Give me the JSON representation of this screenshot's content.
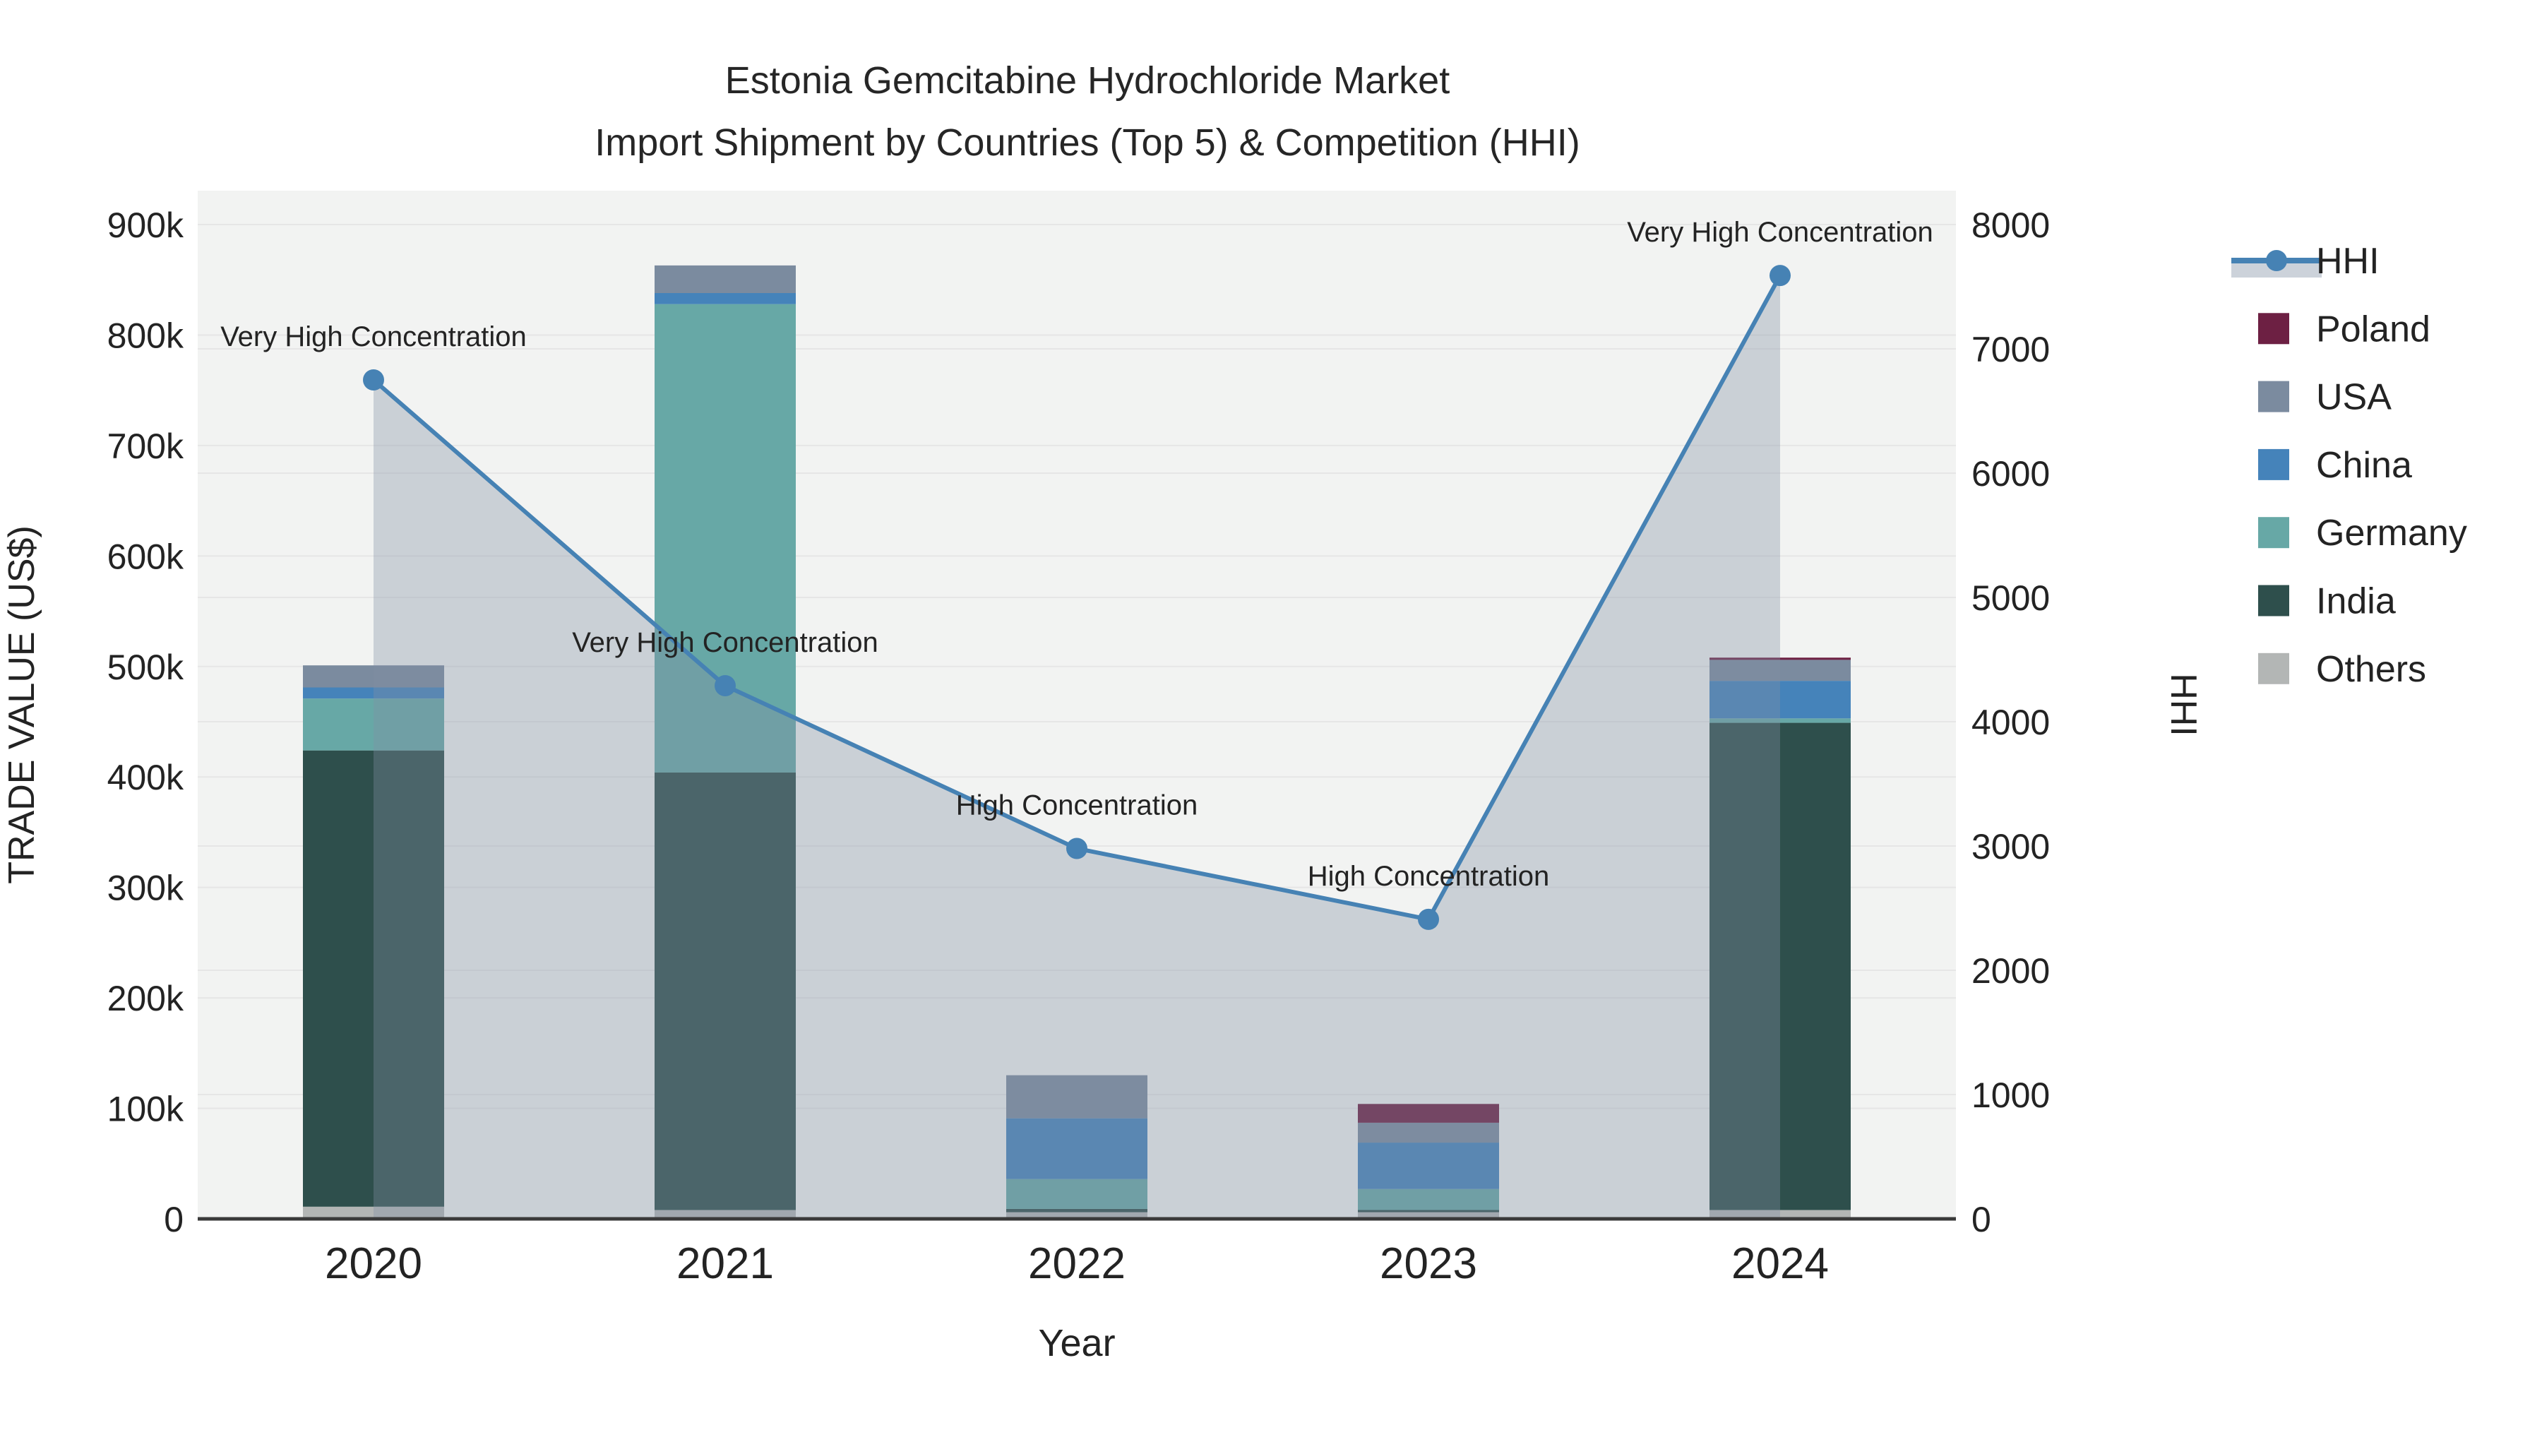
{
  "title": {
    "line1": "Estonia Gemcitabine Hydrochloride Market",
    "line2": "Import Shipment by Countries (Top 5) & Competition (HHI)"
  },
  "chart_data": {
    "type": "bar+line",
    "categories": [
      "2020",
      "2021",
      "2022",
      "2023",
      "2024"
    ],
    "bar_unit": "thousand US$",
    "series": [
      {
        "name": "Poland",
        "color": "#6d2043",
        "values_kusd": [
          0,
          0,
          0,
          17,
          2
        ]
      },
      {
        "name": "USA",
        "color": "#7b8b9f",
        "values_kusd": [
          20,
          25,
          39,
          18,
          19
        ]
      },
      {
        "name": "China",
        "color": "#4583ba",
        "values_kusd": [
          10,
          10,
          55,
          42,
          34
        ]
      },
      {
        "name": "Germany",
        "color": "#67a8a6",
        "values_kusd": [
          47,
          424,
          27,
          19,
          4
        ]
      },
      {
        "name": "India",
        "color": "#2e4f4c",
        "values_kusd": [
          413,
          396,
          3,
          2,
          441
        ]
      },
      {
        "name": "Others",
        "color": "#b3b6b5",
        "values_kusd": [
          11,
          8,
          6,
          6,
          8
        ]
      }
    ],
    "stack_order_bottom_to_top": [
      "Others",
      "India",
      "Germany",
      "China",
      "USA",
      "Poland"
    ],
    "line_series": {
      "name": "HHI",
      "color": "#4682b4",
      "area_fill_color": "rgba(130,143,163,0.35)",
      "values": [
        6750,
        4290,
        2980,
        2410,
        7590
      ]
    },
    "annotations": [
      {
        "year": "2020",
        "text": "Very High Concentration"
      },
      {
        "year": "2021",
        "text": "Very High Concentration"
      },
      {
        "year": "2022",
        "text": "High Concentration"
      },
      {
        "year": "2023",
        "text": "High Concentration"
      },
      {
        "year": "2024",
        "text": "Very High Concentration"
      }
    ],
    "axes": {
      "left": {
        "title": "TRADE VALUE (US$)",
        "ticks": [
          "0",
          "100k",
          "200k",
          "300k",
          "400k",
          "500k",
          "600k",
          "700k",
          "800k",
          "900k"
        ],
        "max_kusd": 900
      },
      "right": {
        "title": "HHI",
        "ticks": [
          "0",
          "1000",
          "2000",
          "3000",
          "4000",
          "5000",
          "6000",
          "7000",
          "8000"
        ],
        "max": 8000
      },
      "x": {
        "title": "Year"
      }
    },
    "legend": [
      {
        "label": "HHI",
        "kind": "line"
      },
      {
        "label": "Poland",
        "kind": "swatch"
      },
      {
        "label": "USA",
        "kind": "swatch"
      },
      {
        "label": "China",
        "kind": "swatch"
      },
      {
        "label": "Germany",
        "kind": "swatch"
      },
      {
        "label": "India",
        "kind": "swatch"
      },
      {
        "label": "Others",
        "kind": "swatch"
      }
    ],
    "style": {
      "plot_bg": "#f2f3f2",
      "grid_color": "#e6e6e6",
      "zeroline_color": "#3a3a3a",
      "text_color": "#232323",
      "legend_band_color": "#ccd2da"
    }
  }
}
